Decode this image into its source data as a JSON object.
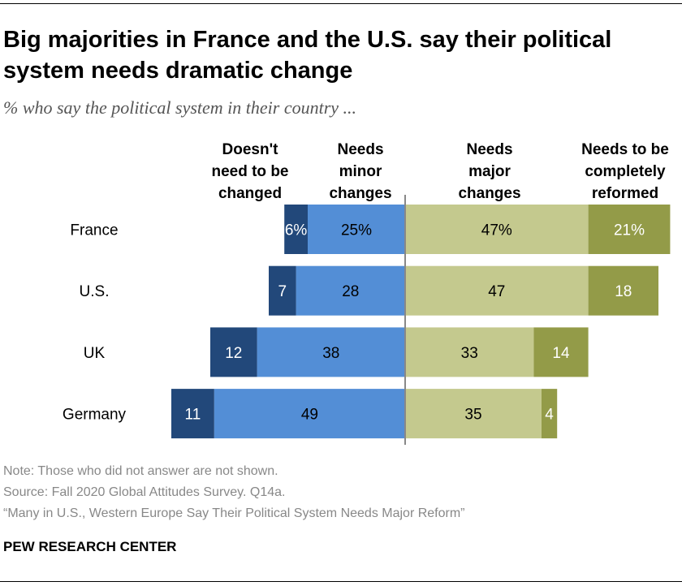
{
  "title": "Big majorities in France and the U.S. say their political system needs dramatic change",
  "subtitle": "% who say the political system in their country ...",
  "chart_data": {
    "type": "bar",
    "orientation": "horizontal-diverging",
    "categories": [
      "France",
      "U.S.",
      "UK",
      "Germany"
    ],
    "series": [
      {
        "name": "Doesn't need to be changed",
        "side": "left",
        "color": "#22487a",
        "label_color": "#ffffff",
        "values": [
          6,
          7,
          12,
          11
        ]
      },
      {
        "name": "Needs minor changes",
        "side": "left",
        "color": "#538ed6",
        "label_color": "#000000",
        "values": [
          25,
          28,
          38,
          49
        ]
      },
      {
        "name": "Needs major changes",
        "side": "right",
        "color": "#c4c98e",
        "label_color": "#000000",
        "values": [
          47,
          47,
          33,
          35
        ]
      },
      {
        "name": "Needs to be completely reformed",
        "side": "right",
        "color": "#939b48",
        "label_color": "#ffffff",
        "values": [
          21,
          18,
          14,
          4
        ]
      }
    ],
    "legend_headers": [
      [
        "Doesn't",
        "need to be",
        "changed"
      ],
      [
        "Needs",
        "minor",
        "changes"
      ],
      [
        "Needs",
        "major",
        "changes"
      ],
      [
        "Needs to be",
        "completely",
        "reformed"
      ]
    ],
    "first_row_percent_sign": true,
    "unit": "%"
  },
  "notes": {
    "note": "Note: Those who did not answer are not shown.",
    "source": "Source: Fall 2020 Global Attitudes Survey. Q14a.",
    "report": "“Many in U.S., Western Europe Say Their Political System Needs Major Reform”"
  },
  "brand": "PEW RESEARCH CENTER"
}
